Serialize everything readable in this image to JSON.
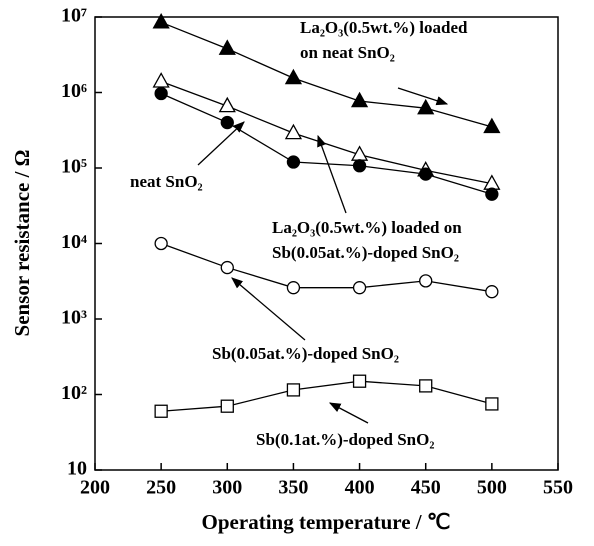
{
  "chart_data": {
    "type": "line",
    "x_label": "Operating temperature / ℃",
    "y_label": "Sensor resistance / Ω",
    "y_scale": "log",
    "xlim": [
      200,
      550
    ],
    "xticks": [
      200,
      250,
      300,
      350,
      400,
      450,
      500,
      550
    ],
    "ylim": [
      10,
      10000000
    ],
    "yticks": [
      10,
      {
        "value": 100,
        "label": "10²"
      },
      {
        "value": 1000,
        "label": "10³"
      },
      {
        "value": 10000,
        "label": "10⁴"
      },
      {
        "value": 100000,
        "label": "10⁵"
      },
      {
        "value": 1000000,
        "label": "10⁶"
      },
      {
        "value": 10000000,
        "label": "10⁷"
      }
    ],
    "x": [
      250,
      300,
      350,
      400,
      450,
      500
    ],
    "series": [
      {
        "name": "La₂O₃(0.5wt.%) loaded on neat SnO₂",
        "color": "#000000",
        "marker": "triangle",
        "filled": true,
        "values": [
          8500000,
          3800000,
          1550000,
          770000,
          620000,
          350000
        ]
      },
      {
        "name": "La₂O₃(0.5wt.%) loaded on Sb(0.05at.%)-doped SnO₂",
        "color": "#000000",
        "marker": "triangle",
        "filled": false,
        "values": [
          1400000,
          660000,
          290000,
          150000,
          93000,
          62000
        ]
      },
      {
        "name": "neat SnO₂",
        "color": "#000000",
        "marker": "circle",
        "filled": true,
        "values": [
          970000,
          400000,
          120000,
          107000,
          83000,
          45000
        ]
      },
      {
        "name": "Sb(0.05at.%)-doped SnO₂",
        "color": "#000000",
        "marker": "circle",
        "filled": false,
        "values": [
          10000,
          4800,
          2600,
          2600,
          3200,
          2300
        ]
      },
      {
        "name": "Sb(0.1at.%)-doped SnO₂",
        "color": "#000000",
        "marker": "square",
        "filled": false,
        "values": [
          60,
          70,
          115,
          150,
          130,
          75
        ]
      }
    ]
  }
}
